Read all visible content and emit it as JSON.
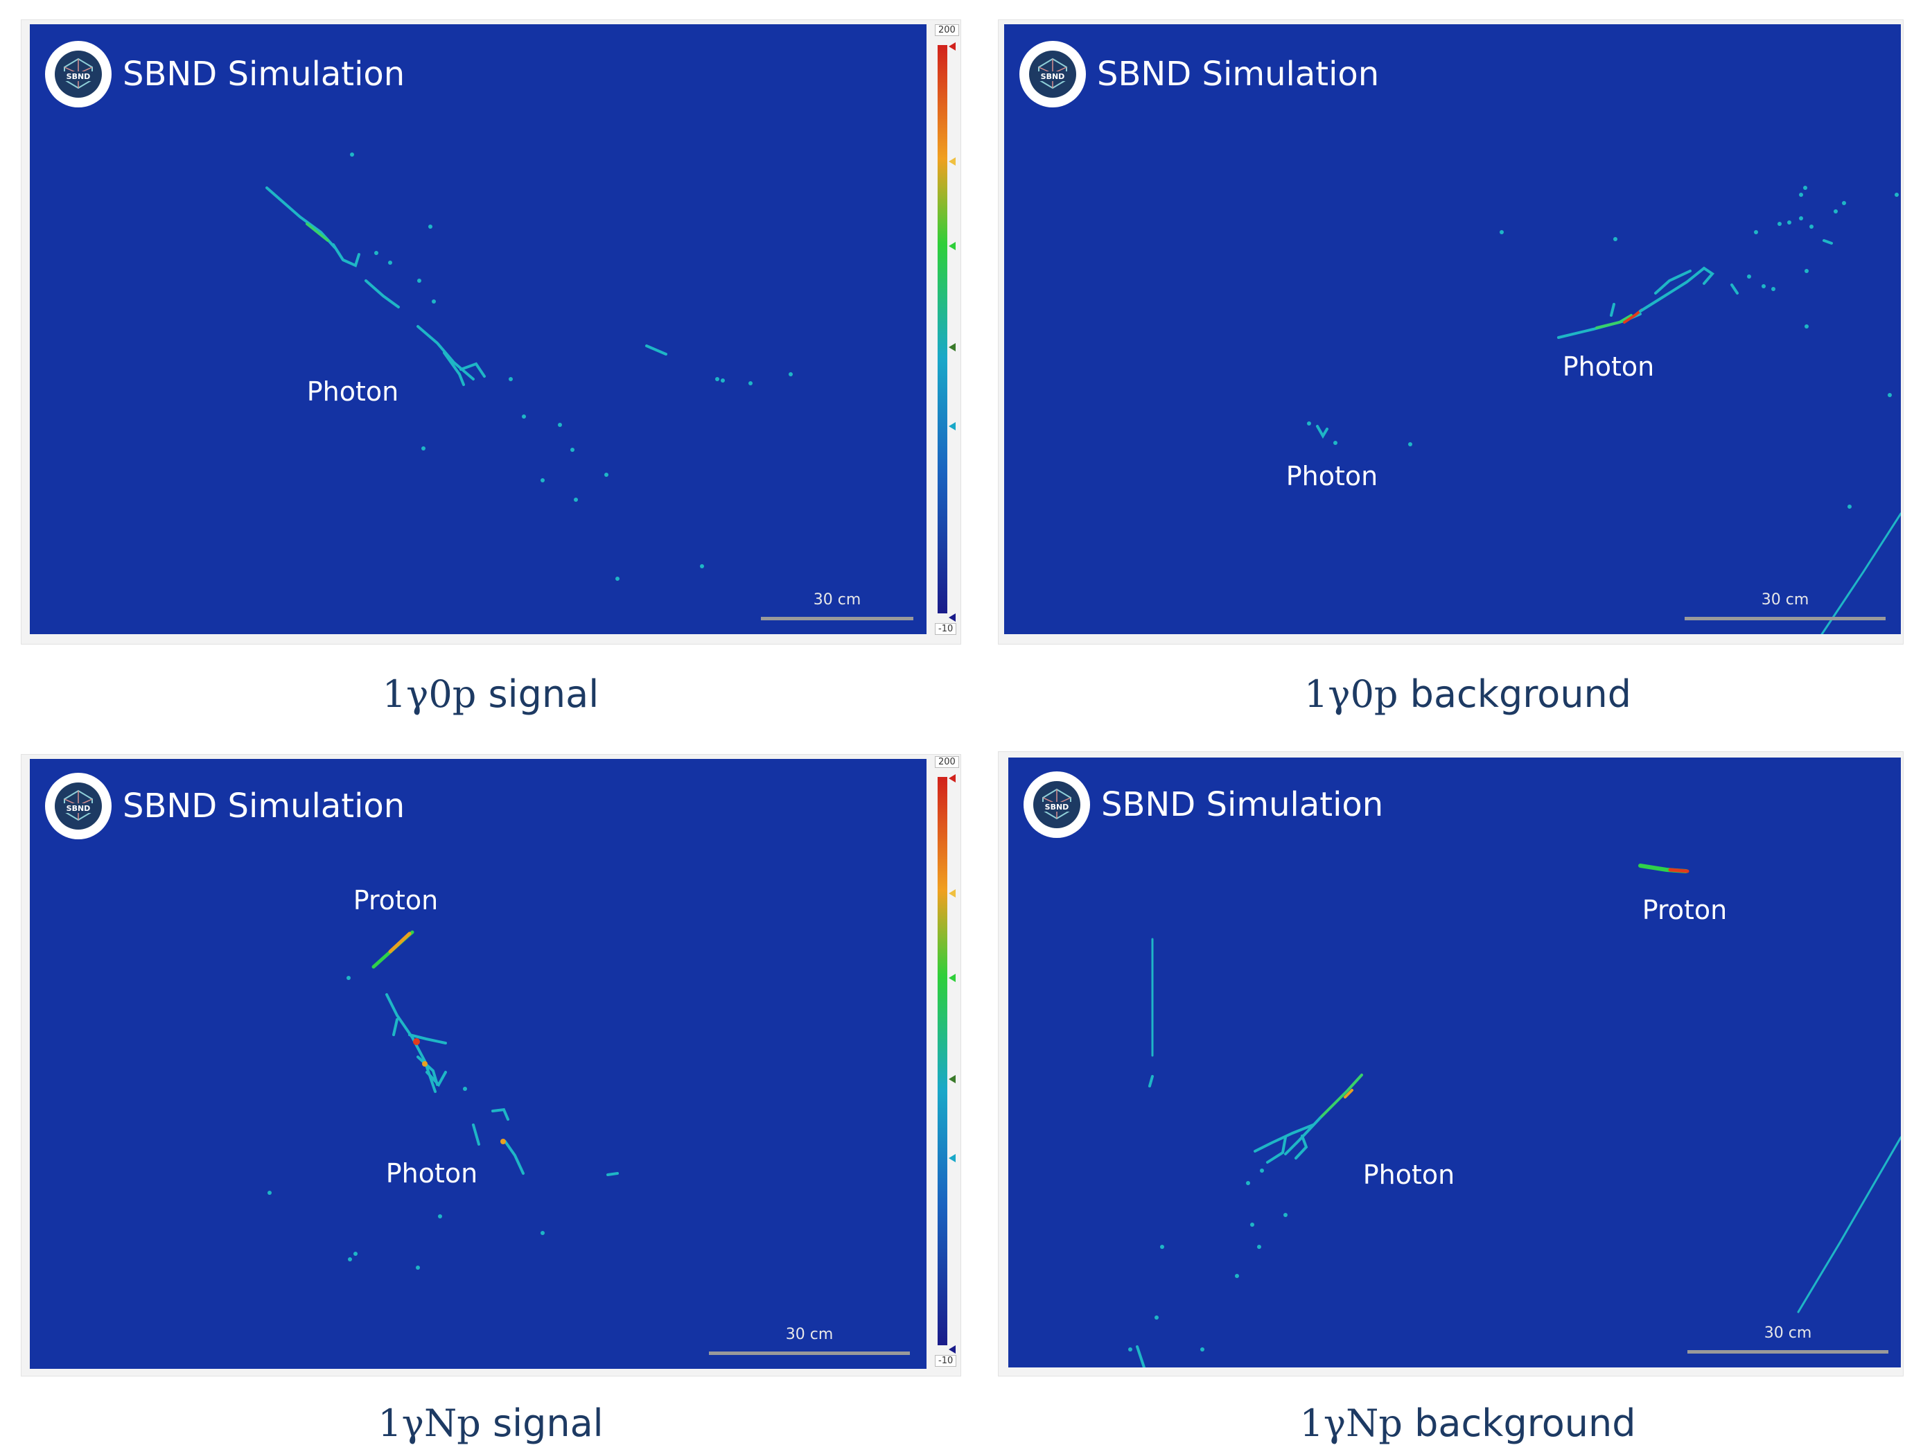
{
  "panels": [
    {
      "brand": "SBND Simulation",
      "labels": [
        "Photon"
      ],
      "scale": "30 cm",
      "caption_math": "1γ0p",
      "caption_word": "signal",
      "colorbar": {
        "max": "200",
        "min": "-10"
      }
    },
    {
      "brand": "SBND Simulation",
      "labels": [
        "Photon",
        "Photon"
      ],
      "scale": "30 cm",
      "caption_math": "1γ0p",
      "caption_word": "background"
    },
    {
      "brand": "SBND Simulation",
      "labels": [
        "Proton",
        "Photon"
      ],
      "scale": "30 cm",
      "caption_math": "1γNp",
      "caption_word": "signal",
      "colorbar": {
        "max": "200",
        "min": "-10"
      }
    },
    {
      "brand": "SBND Simulation",
      "labels": [
        "Proton",
        "Photon"
      ],
      "scale": "30 cm",
      "caption_math": "1γNp",
      "caption_word": "background"
    }
  ],
  "logo": {
    "arc_top": "SHORT-BASELINE",
    "center": "SBND",
    "arc_bottom": "NEAR DETECTOR"
  },
  "colors": {
    "background": "#1433a3",
    "track": "#1fb6c6",
    "hot": "#e23b1c",
    "mid": "#2fd14a",
    "caption": "#1d3a63"
  }
}
